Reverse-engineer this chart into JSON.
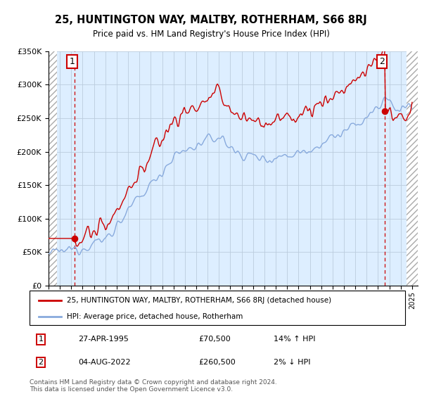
{
  "title": "25, HUNTINGTON WAY, MALTBY, ROTHERHAM, S66 8RJ",
  "subtitle": "Price paid vs. HM Land Registry's House Price Index (HPI)",
  "legend_line1": "25, HUNTINGTON WAY, MALTBY, ROTHERHAM, S66 8RJ (detached house)",
  "legend_line2": "HPI: Average price, detached house, Rotherham",
  "annotation1_label": "1",
  "annotation1_date": "27-APR-1995",
  "annotation1_price": "£70,500",
  "annotation1_hpi": "14% ↑ HPI",
  "annotation2_label": "2",
  "annotation2_date": "04-AUG-2022",
  "annotation2_price": "£260,500",
  "annotation2_hpi": "2% ↓ HPI",
  "footer": "Contains HM Land Registry data © Crown copyright and database right 2024.\nThis data is licensed under the Open Government Licence v3.0.",
  "sale1_year": 1995.32,
  "sale1_price": 70500,
  "sale2_year": 2022.59,
  "sale2_price": 260500,
  "ylim": [
    0,
    350000
  ],
  "xlim_start": 1993.0,
  "xlim_end": 2025.5,
  "red_line_color": "#cc0000",
  "blue_line_color": "#88aadd",
  "grid_color": "#bbccdd",
  "bg_color": "#ddeeff",
  "hatch_left_end": 1993.75,
  "hatch_right_start": 2024.5
}
